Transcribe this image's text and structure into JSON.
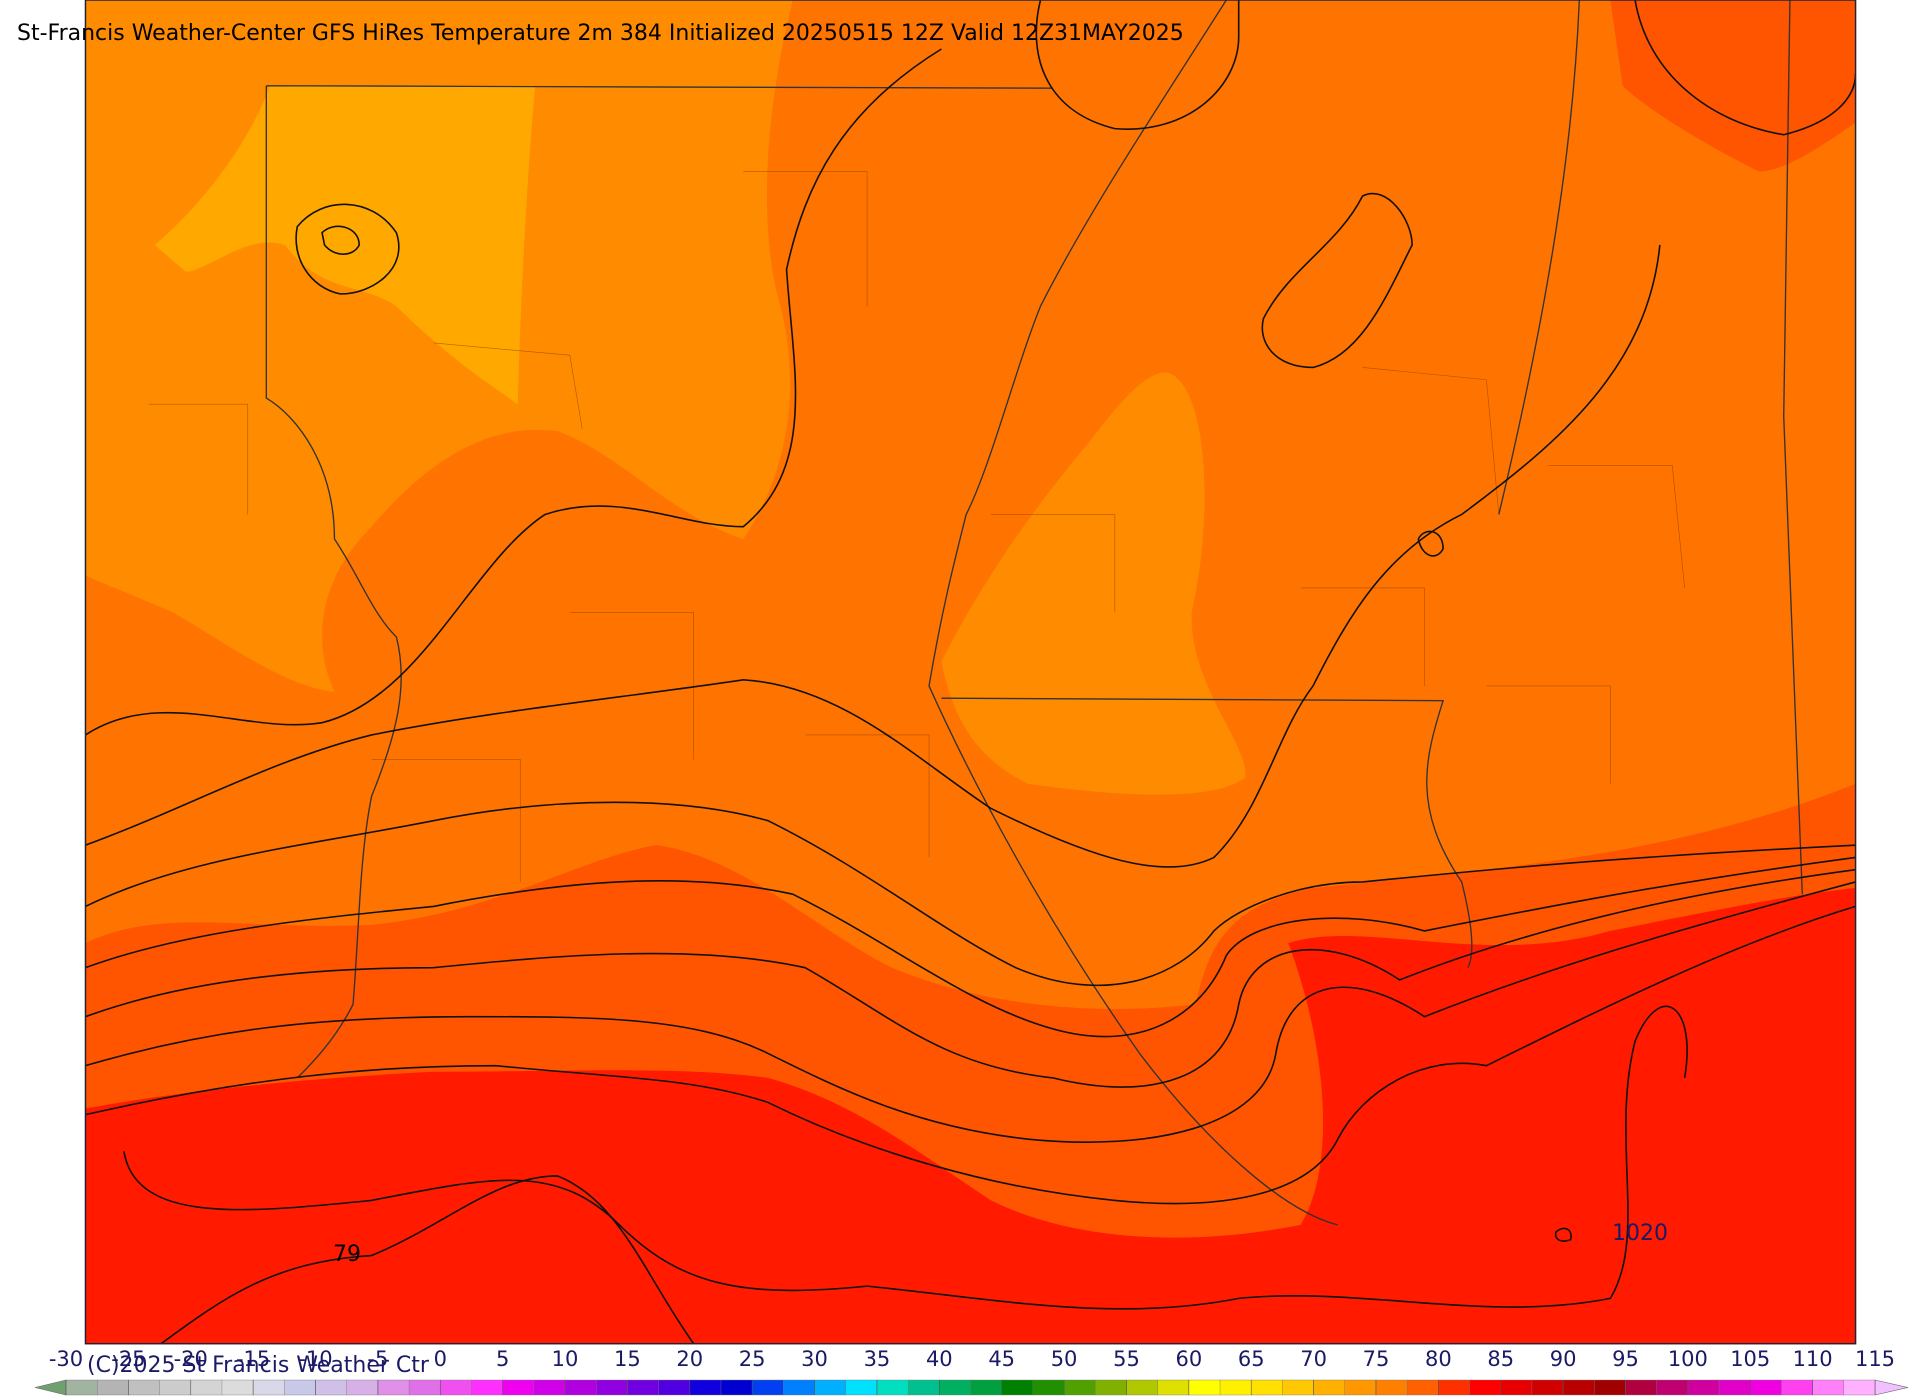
{
  "title": "St-Francis Weather-Center GFS HiRes Temperature 2m  384 Initialized 20250515 12Z Valid 12Z31MAY2025",
  "copyright": "(C)2025 St Francis Weather Ctr",
  "contour_labels": [
    "79",
    "1020"
  ],
  "colorbar": {
    "ticks": [
      -30,
      -25,
      -20,
      -15,
      -10,
      -5,
      0,
      5,
      10,
      15,
      20,
      25,
      30,
      35,
      40,
      45,
      50,
      55,
      60,
      65,
      70,
      75,
      80,
      85,
      90,
      95,
      100,
      105,
      110,
      115
    ],
    "under_color": "#70a070",
    "over_color": "#f0c0ff",
    "colors": [
      "#a0b4a0",
      "#b4b4b4",
      "#c0c0c0",
      "#cccccc",
      "#d4d4d4",
      "#dcdcdc",
      "#d8d8e8",
      "#c8c8e8",
      "#d0c0e8",
      "#d8b0e8",
      "#e090e8",
      "#e070e8",
      "#f050f0",
      "#ff30ff",
      "#f000f0",
      "#d000e8",
      "#b000e0",
      "#9000e0",
      "#7000e0",
      "#5000e0",
      "#1000e0",
      "#0000d0",
      "#0040f0",
      "#0080ff",
      "#00b0ff",
      "#00e0ff",
      "#00e0c0",
      "#00c090",
      "#00b060",
      "#00a040",
      "#008000",
      "#209000",
      "#50a000",
      "#80b000",
      "#b0c800",
      "#e0e000",
      "#ffff00",
      "#fff000",
      "#ffe000",
      "#ffc800",
      "#ffb000",
      "#ff9800",
      "#ff8000",
      "#ff6000",
      "#ff3000",
      "#ff0000",
      "#e80000",
      "#d00000",
      "#b80000",
      "#a00000",
      "#b00040",
      "#c00070",
      "#d000a0",
      "#e000c8",
      "#f000e0",
      "#ff40f0",
      "#ff80f8",
      "#ffb0ff"
    ]
  }
}
